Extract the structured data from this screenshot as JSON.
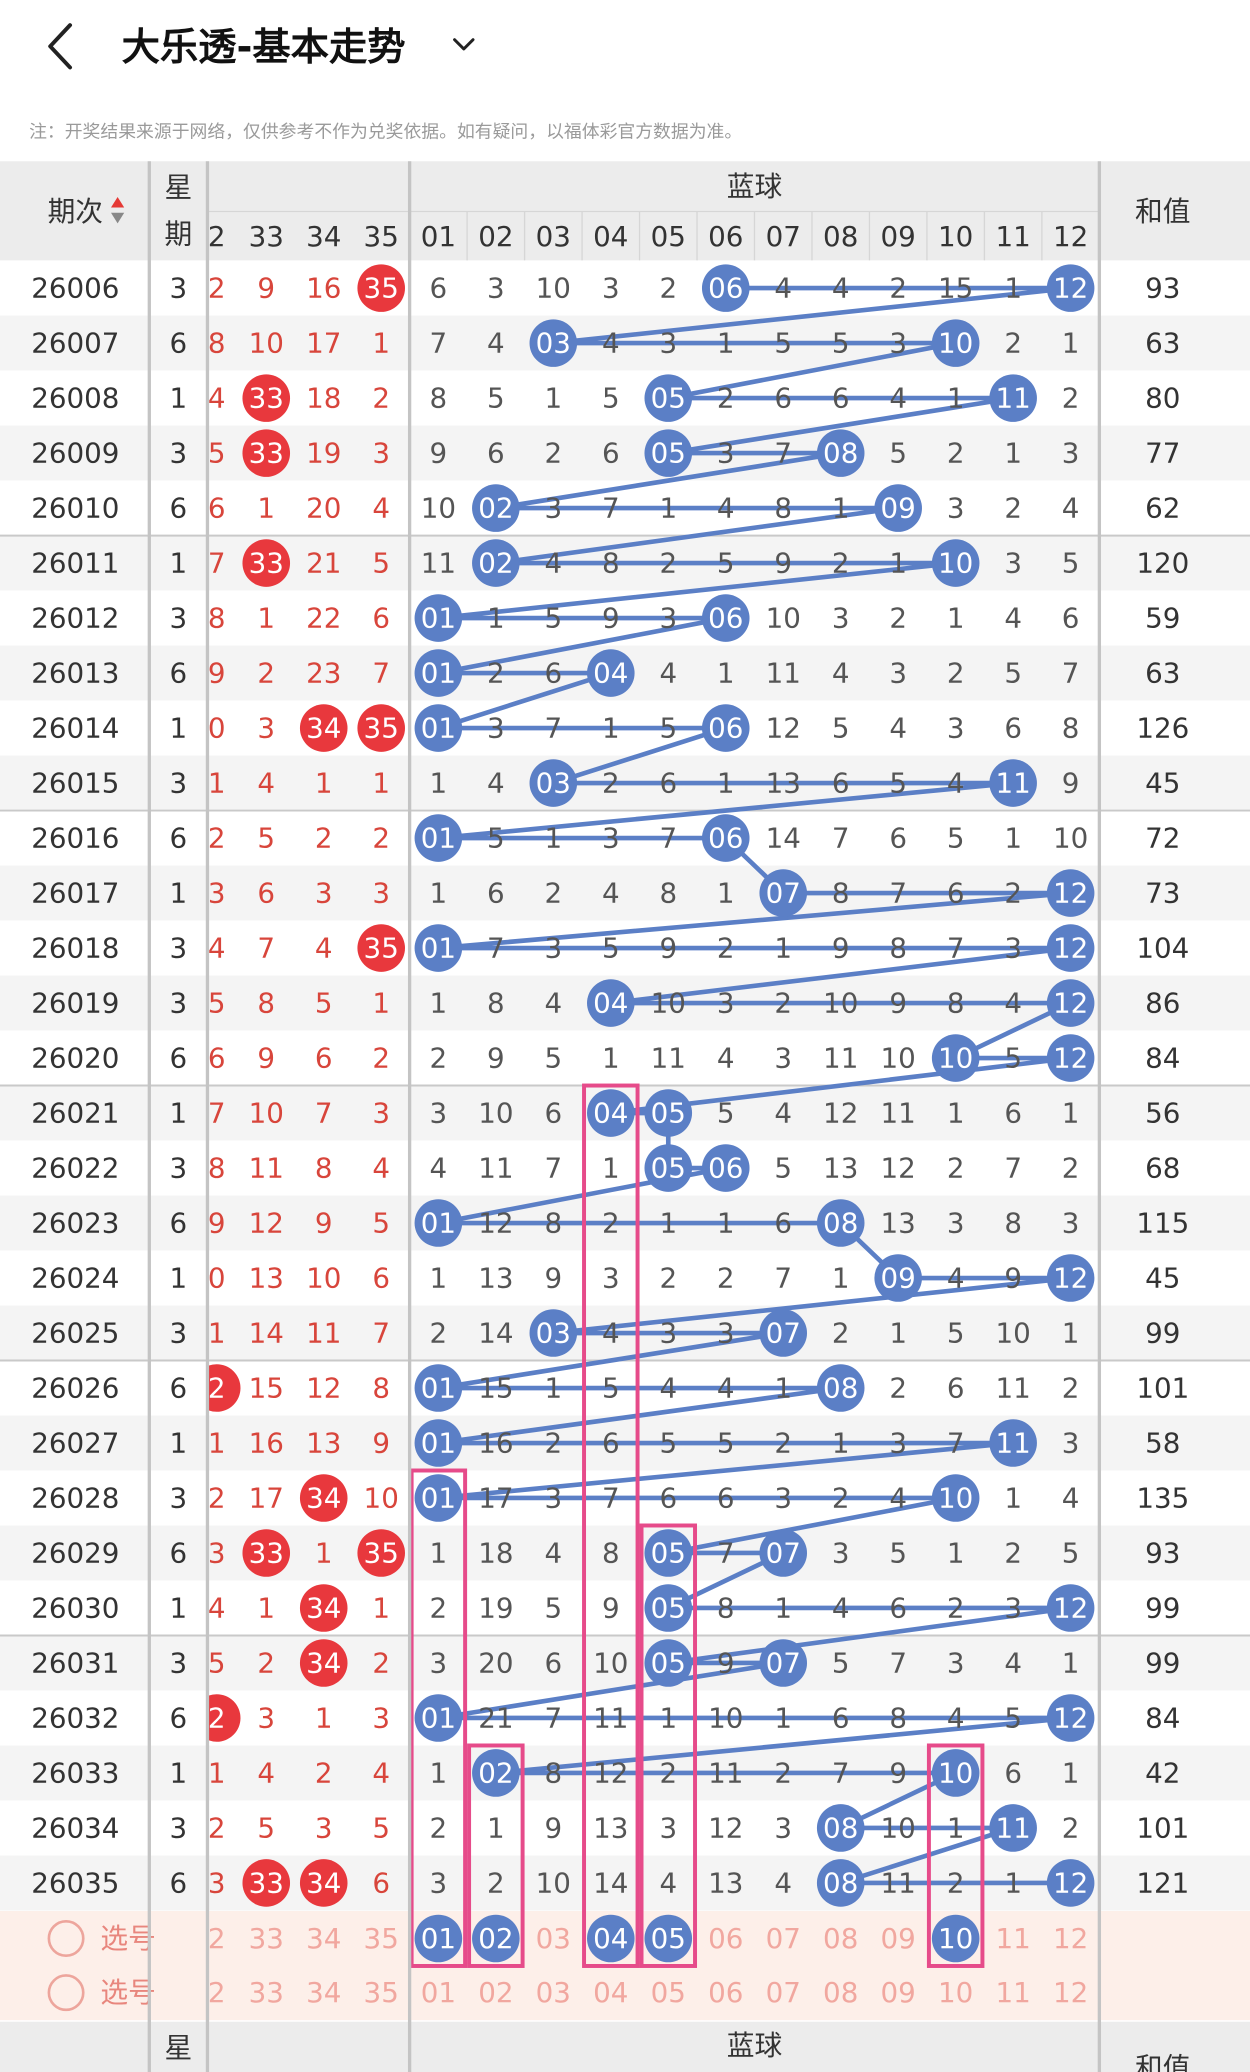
{
  "header": {
    "title": "大乐透-基本走势",
    "note": "注：开奖结果来源于网络，仅供参考不作为兑奖依据。如有疑问，以福体彩官方数据为准。"
  },
  "table": {
    "period_header": "期次",
    "week_header": [
      "星",
      "期"
    ],
    "blue_header": "蓝球",
    "sum_header": "和值",
    "red_columns": [
      "2",
      "33",
      "34",
      "35"
    ],
    "blue_columns": [
      "01",
      "02",
      "03",
      "04",
      "05",
      "06",
      "07",
      "08",
      "09",
      "10",
      "11",
      "12"
    ],
    "rows": [
      {
        "period": "26006",
        "week": "3",
        "red": [
          "2",
          "9",
          "16",
          "35"
        ],
        "red_hits": [
          3
        ],
        "blue": [
          "6",
          "3",
          "10",
          "3",
          "2",
          "06",
          "4",
          "4",
          "2",
          "15",
          "1",
          "12"
        ],
        "blue_hits": [
          5,
          11
        ],
        "sum": "93"
      },
      {
        "period": "26007",
        "week": "6",
        "red": [
          "8",
          "10",
          "17",
          "1"
        ],
        "blue": [
          "7",
          "4",
          "03",
          "4",
          "3",
          "1",
          "5",
          "5",
          "3",
          "10",
          "2",
          "1"
        ],
        "blue_hits": [
          2,
          9
        ],
        "sum": "63"
      },
      {
        "period": "26008",
        "week": "1",
        "red": [
          "4",
          "33",
          "18",
          "2"
        ],
        "red_hits": [
          1
        ],
        "blue": [
          "8",
          "5",
          "1",
          "5",
          "05",
          "2",
          "6",
          "6",
          "4",
          "1",
          "11",
          "2"
        ],
        "blue_hits": [
          4,
          10
        ],
        "sum": "80"
      },
      {
        "period": "26009",
        "week": "3",
        "red": [
          "5",
          "33",
          "19",
          "3"
        ],
        "red_hits": [
          1
        ],
        "blue": [
          "9",
          "6",
          "2",
          "6",
          "05",
          "3",
          "7",
          "08",
          "5",
          "2",
          "1",
          "3"
        ],
        "blue_hits": [
          4,
          7
        ],
        "sum": "77"
      },
      {
        "period": "26010",
        "week": "6",
        "red": [
          "6",
          "1",
          "20",
          "4"
        ],
        "blue": [
          "10",
          "02",
          "3",
          "7",
          "1",
          "4",
          "8",
          "1",
          "09",
          "3",
          "2",
          "4"
        ],
        "blue_hits": [
          1,
          8
        ],
        "sum": "62"
      },
      {
        "period": "26011",
        "week": "1",
        "red": [
          "7",
          "33",
          "21",
          "5"
        ],
        "red_hits": [
          1
        ],
        "blue": [
          "11",
          "02",
          "4",
          "8",
          "2",
          "5",
          "9",
          "2",
          "1",
          "10",
          "3",
          "5"
        ],
        "blue_hits": [
          1,
          9
        ],
        "sum": "120"
      },
      {
        "period": "26012",
        "week": "3",
        "red": [
          "8",
          "1",
          "22",
          "6"
        ],
        "blue": [
          "01",
          "1",
          "5",
          "9",
          "3",
          "06",
          "10",
          "3",
          "2",
          "1",
          "4",
          "6"
        ],
        "blue_hits": [
          0,
          5
        ],
        "sum": "59"
      },
      {
        "period": "26013",
        "week": "6",
        "red": [
          "9",
          "2",
          "23",
          "7"
        ],
        "blue": [
          "01",
          "2",
          "6",
          "04",
          "4",
          "1",
          "11",
          "4",
          "3",
          "2",
          "5",
          "7"
        ],
        "blue_hits": [
          0,
          3
        ],
        "sum": "63"
      },
      {
        "period": "26014",
        "week": "1",
        "red": [
          "0",
          "3",
          "34",
          "35"
        ],
        "red_hits": [
          2,
          3
        ],
        "blue": [
          "01",
          "3",
          "7",
          "1",
          "5",
          "06",
          "12",
          "5",
          "4",
          "3",
          "6",
          "8"
        ],
        "blue_hits": [
          0,
          5
        ],
        "sum": "126"
      },
      {
        "period": "26015",
        "week": "3",
        "red": [
          "1",
          "4",
          "1",
          "1"
        ],
        "blue": [
          "1",
          "4",
          "03",
          "2",
          "6",
          "1",
          "13",
          "6",
          "5",
          "4",
          "11",
          "9"
        ],
        "blue_hits": [
          2,
          10
        ],
        "sum": "45"
      },
      {
        "period": "26016",
        "week": "6",
        "red": [
          "2",
          "5",
          "2",
          "2"
        ],
        "blue": [
          "01",
          "5",
          "1",
          "3",
          "7",
          "06",
          "14",
          "7",
          "6",
          "5",
          "1",
          "10"
        ],
        "blue_hits": [
          0,
          5
        ],
        "sum": "72"
      },
      {
        "period": "26017",
        "week": "1",
        "red": [
          "3",
          "6",
          "3",
          "3"
        ],
        "blue": [
          "1",
          "6",
          "2",
          "4",
          "8",
          "1",
          "07",
          "8",
          "7",
          "6",
          "2",
          "12"
        ],
        "blue_hits": [
          6,
          11
        ],
        "sum": "73"
      },
      {
        "period": "26018",
        "week": "3",
        "red": [
          "4",
          "7",
          "4",
          "35"
        ],
        "red_hits": [
          3
        ],
        "blue": [
          "01",
          "7",
          "3",
          "5",
          "9",
          "2",
          "1",
          "9",
          "8",
          "7",
          "3",
          "12"
        ],
        "blue_hits": [
          0,
          11
        ],
        "sum": "104"
      },
      {
        "period": "26019",
        "week": "3",
        "red": [
          "5",
          "8",
          "5",
          "1"
        ],
        "blue": [
          "1",
          "8",
          "4",
          "04",
          "10",
          "3",
          "2",
          "10",
          "9",
          "8",
          "4",
          "12"
        ],
        "blue_hits": [
          3,
          11
        ],
        "sum": "86"
      },
      {
        "period": "26020",
        "week": "6",
        "red": [
          "6",
          "9",
          "6",
          "2"
        ],
        "blue": [
          "2",
          "9",
          "5",
          "1",
          "11",
          "4",
          "3",
          "11",
          "10",
          "10",
          "5",
          "12"
        ],
        "blue_hits": [
          9,
          11
        ],
        "sum": "84"
      },
      {
        "period": "26021",
        "week": "1",
        "red": [
          "7",
          "10",
          "7",
          "3"
        ],
        "blue": [
          "3",
          "10",
          "6",
          "04",
          "05",
          "5",
          "4",
          "12",
          "11",
          "1",
          "6",
          "1"
        ],
        "blue_hits": [
          3,
          4
        ],
        "sum": "56"
      },
      {
        "period": "26022",
        "week": "3",
        "red": [
          "8",
          "11",
          "8",
          "4"
        ],
        "blue": [
          "4",
          "11",
          "7",
          "1",
          "05",
          "06",
          "5",
          "13",
          "12",
          "2",
          "7",
          "2"
        ],
        "blue_hits": [
          4,
          5
        ],
        "sum": "68"
      },
      {
        "period": "26023",
        "week": "6",
        "red": [
          "9",
          "12",
          "9",
          "5"
        ],
        "blue": [
          "01",
          "12",
          "8",
          "2",
          "1",
          "1",
          "6",
          "08",
          "13",
          "3",
          "8",
          "3"
        ],
        "blue_hits": [
          0,
          7
        ],
        "sum": "115"
      },
      {
        "period": "26024",
        "week": "1",
        "red": [
          "0",
          "13",
          "10",
          "6"
        ],
        "blue": [
          "1",
          "13",
          "9",
          "3",
          "2",
          "2",
          "7",
          "1",
          "09",
          "4",
          "9",
          "12"
        ],
        "blue_hits": [
          8,
          11
        ],
        "sum": "45"
      },
      {
        "period": "26025",
        "week": "3",
        "red": [
          "1",
          "14",
          "11",
          "7"
        ],
        "blue": [
          "2",
          "14",
          "03",
          "4",
          "3",
          "3",
          "07",
          "2",
          "1",
          "5",
          "10",
          "1"
        ],
        "blue_hits": [
          2,
          6
        ],
        "sum": "99"
      },
      {
        "period": "26026",
        "week": "6",
        "red": [
          "2",
          "15",
          "12",
          "8"
        ],
        "red_hits": [
          0
        ],
        "blue": [
          "01",
          "15",
          "1",
          "5",
          "4",
          "4",
          "1",
          "08",
          "2",
          "6",
          "11",
          "2"
        ],
        "blue_hits": [
          0,
          7
        ],
        "sum": "101"
      },
      {
        "period": "26027",
        "week": "1",
        "red": [
          "1",
          "16",
          "13",
          "9"
        ],
        "blue": [
          "01",
          "16",
          "2",
          "6",
          "5",
          "5",
          "2",
          "1",
          "3",
          "7",
          "11",
          "3"
        ],
        "blue_hits": [
          0,
          10
        ],
        "sum": "58"
      },
      {
        "period": "26028",
        "week": "3",
        "red": [
          "2",
          "17",
          "34",
          "10"
        ],
        "red_hits": [
          2
        ],
        "blue": [
          "01",
          "17",
          "3",
          "7",
          "6",
          "6",
          "3",
          "2",
          "4",
          "10",
          "1",
          "4"
        ],
        "blue_hits": [
          0,
          9
        ],
        "sum": "135"
      },
      {
        "period": "26029",
        "week": "6",
        "red": [
          "3",
          "33",
          "1",
          "35"
        ],
        "red_hits": [
          1,
          3
        ],
        "blue": [
          "1",
          "18",
          "4",
          "8",
          "05",
          "7",
          "07",
          "3",
          "5",
          "1",
          "2",
          "5"
        ],
        "blue_hits": [
          4,
          6
        ],
        "sum": "93"
      },
      {
        "period": "26030",
        "week": "1",
        "red": [
          "4",
          "1",
          "34",
          "1"
        ],
        "red_hits": [
          2
        ],
        "blue": [
          "2",
          "19",
          "5",
          "9",
          "05",
          "8",
          "1",
          "4",
          "6",
          "2",
          "3",
          "12"
        ],
        "blue_hits": [
          4,
          11
        ],
        "sum": "99"
      },
      {
        "period": "26031",
        "week": "3",
        "red": [
          "5",
          "2",
          "34",
          "2"
        ],
        "red_hits": [
          2
        ],
        "blue": [
          "3",
          "20",
          "6",
          "10",
          "05",
          "9",
          "07",
          "5",
          "7",
          "3",
          "4",
          "1"
        ],
        "blue_hits": [
          4,
          6
        ],
        "sum": "99"
      },
      {
        "period": "26032",
        "week": "6",
        "red": [
          "2",
          "3",
          "1",
          "3"
        ],
        "red_hits": [
          0
        ],
        "blue": [
          "01",
          "21",
          "7",
          "11",
          "1",
          "10",
          "1",
          "6",
          "8",
          "4",
          "5",
          "12"
        ],
        "blue_hits": [
          0,
          11
        ],
        "sum": "84"
      },
      {
        "period": "26033",
        "week": "1",
        "red": [
          "1",
          "4",
          "2",
          "4"
        ],
        "blue": [
          "1",
          "02",
          "8",
          "12",
          "2",
          "11",
          "2",
          "7",
          "9",
          "10",
          "6",
          "1"
        ],
        "blue_hits": [
          1,
          9
        ],
        "sum": "42"
      },
      {
        "period": "26034",
        "week": "3",
        "red": [
          "2",
          "5",
          "3",
          "5"
        ],
        "blue": [
          "2",
          "1",
          "9",
          "13",
          "3",
          "12",
          "3",
          "08",
          "10",
          "1",
          "11",
          "2"
        ],
        "blue_hits": [
          7,
          10
        ],
        "sum": "101"
      },
      {
        "period": "26035",
        "week": "6",
        "red": [
          "3",
          "33",
          "34",
          "6"
        ],
        "red_hits": [
          1,
          2
        ],
        "blue": [
          "3",
          "2",
          "10",
          "14",
          "4",
          "13",
          "4",
          "08",
          "11",
          "2",
          "1",
          "12"
        ],
        "blue_hits": [
          7,
          11
        ],
        "sum": "121"
      }
    ],
    "select_rows": [
      {
        "label": "选号",
        "red": [
          "2",
          "33",
          "34",
          "35"
        ],
        "blue": [
          "01",
          "02",
          "03",
          "04",
          "05",
          "06",
          "07",
          "08",
          "09",
          "10",
          "11",
          "12"
        ],
        "blue_hits": [
          0,
          1,
          3,
          4,
          9
        ]
      },
      {
        "label": "选号",
        "red": [
          "2",
          "33",
          "34",
          "35"
        ],
        "blue": [
          "01",
          "02",
          "03",
          "04",
          "05",
          "06",
          "07",
          "08",
          "09",
          "10",
          "11",
          "12"
        ]
      }
    ],
    "footer_header": {
      "week": "星",
      "blue": "蓝球",
      "sum": "和值"
    }
  }
}
